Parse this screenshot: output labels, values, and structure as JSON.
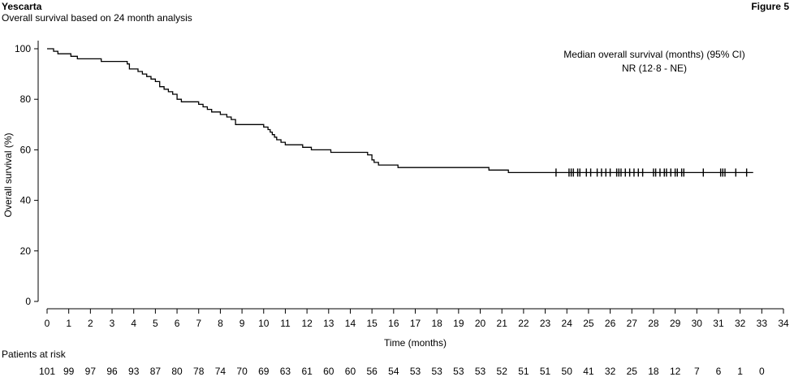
{
  "header": {
    "product": "Yescarta",
    "subtitle": "Overall survival based on 24 month analysis",
    "figure_label": "Figure 5"
  },
  "chart_data": {
    "type": "line",
    "step": true,
    "title": "",
    "xlabel": "Time (months)",
    "ylabel": "Overall survival (%)",
    "xlim": [
      0,
      34
    ],
    "ylim": [
      0,
      100
    ],
    "xticks": [
      0,
      1,
      2,
      3,
      4,
      5,
      6,
      7,
      8,
      9,
      10,
      11,
      12,
      13,
      14,
      15,
      16,
      17,
      18,
      19,
      20,
      21,
      22,
      23,
      24,
      25,
      26,
      27,
      28,
      29,
      30,
      31,
      32,
      33,
      34
    ],
    "yticks": [
      0,
      20,
      40,
      60,
      80,
      100
    ],
    "grid": false,
    "legend": "none",
    "annotation": {
      "line1": "Median overall survival (months) (95% CI)",
      "line2": "NR (12·8 - NE)"
    },
    "series": [
      {
        "color": "#000000",
        "x": [
          0,
          0.3,
          0.5,
          0.6,
          1.1,
          1.4,
          2.5,
          3.7,
          3.8,
          4.2,
          4.4,
          4.6,
          4.8,
          5.0,
          5.2,
          5.4,
          5.6,
          5.8,
          6.0,
          6.2,
          7.0,
          7.2,
          7.4,
          7.6,
          8.0,
          8.3,
          8.5,
          8.7,
          10.0,
          10.2,
          10.3,
          10.4,
          10.5,
          10.6,
          10.8,
          11.0,
          11.8,
          12.2,
          13.1,
          14.8,
          15.0,
          15.1,
          15.3,
          16.2,
          20.4,
          21.3,
          32.6
        ],
        "y": [
          100,
          99,
          98,
          98,
          97,
          96,
          95,
          94,
          92,
          91,
          90,
          89,
          88,
          87,
          85,
          84,
          83,
          82,
          80,
          79,
          78,
          77,
          76,
          75,
          74,
          73,
          72,
          70,
          69,
          68,
          67,
          66,
          65,
          64,
          63,
          62,
          61,
          60,
          59,
          58,
          56,
          55,
          54,
          53,
          52,
          51,
          51
        ]
      }
    ],
    "censored": {
      "y": 51,
      "x": [
        23.5,
        24.1,
        24.2,
        24.3,
        24.5,
        24.6,
        24.9,
        25.1,
        25.4,
        25.6,
        25.8,
        26.0,
        26.3,
        26.4,
        26.5,
        26.7,
        26.9,
        27.1,
        27.3,
        27.5,
        28.0,
        28.1,
        28.3,
        28.5,
        28.6,
        28.8,
        29.0,
        29.1,
        29.3,
        29.4,
        30.3,
        31.1,
        31.2,
        31.3,
        31.8,
        32.3
      ]
    },
    "risk_table": {
      "label": "Patients at risk",
      "times": [
        0,
        1,
        2,
        3,
        4,
        5,
        6,
        7,
        8,
        9,
        10,
        11,
        12,
        13,
        14,
        15,
        16,
        17,
        18,
        19,
        20,
        21,
        22,
        23,
        24,
        25,
        26,
        27,
        28,
        29,
        30,
        31,
        32,
        33
      ],
      "counts": [
        101,
        99,
        97,
        96,
        93,
        87,
        80,
        78,
        74,
        70,
        69,
        63,
        61,
        60,
        60,
        56,
        54,
        53,
        53,
        53,
        53,
        52,
        51,
        51,
        50,
        41,
        32,
        25,
        18,
        12,
        7,
        6,
        1,
        0
      ]
    }
  }
}
